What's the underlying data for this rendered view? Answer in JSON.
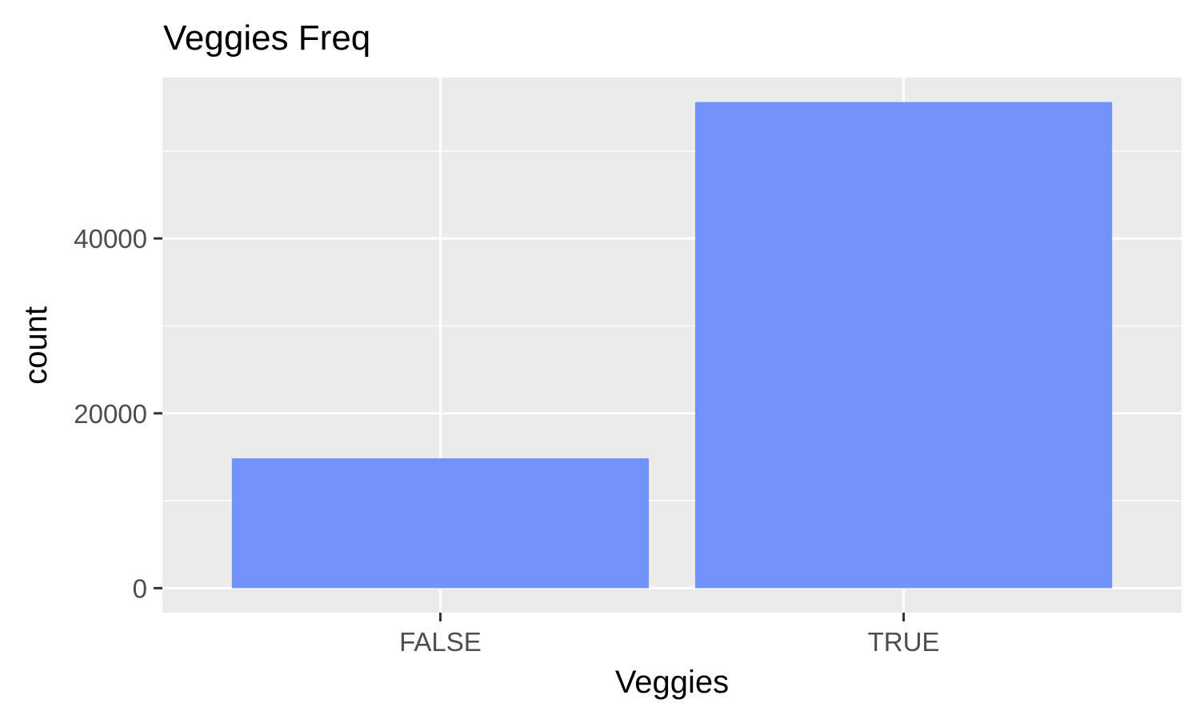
{
  "chart_data": {
    "type": "bar",
    "title": "Veggies Freq",
    "xlabel": "Veggies",
    "ylabel": "count",
    "categories": [
      "FALSE",
      "TRUE"
    ],
    "values": [
      14850,
      55600
    ],
    "ylim": [
      -2800,
      58400
    ],
    "yticks": [
      0,
      20000,
      40000
    ],
    "grid": true,
    "bar_color": "#6d8ff9",
    "panel_color": "#ebebeb",
    "grid_color": "#ffffff",
    "tick_color": "#333333"
  }
}
